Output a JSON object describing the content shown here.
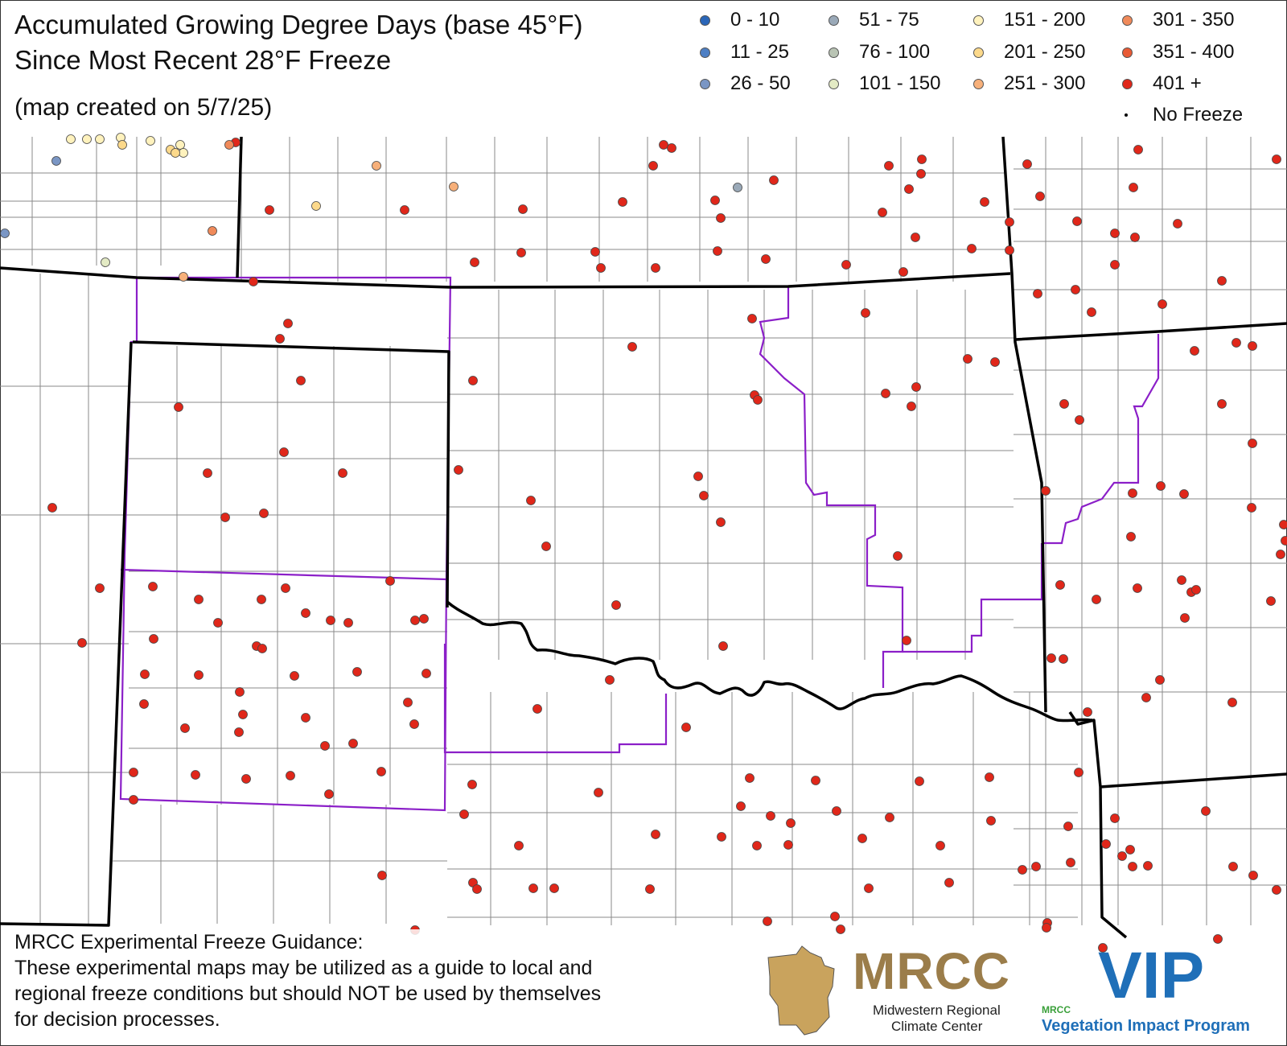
{
  "title": {
    "line1": "Accumulated Growing Degree Days (base 45°F)",
    "line2": "Since Most Recent 28°F Freeze",
    "created": "(map created on 5/7/25)"
  },
  "legend": [
    {
      "label": "0 - 10",
      "color": "#2a66b8"
    },
    {
      "label": "11 - 25",
      "color": "#4d7fc4"
    },
    {
      "label": "26 - 50",
      "color": "#7a96c4"
    },
    {
      "label": "51 - 75",
      "color": "#9aa9b8"
    },
    {
      "label": "76 - 100",
      "color": "#b9c4b4"
    },
    {
      "label": "101 - 150",
      "color": "#e3eac4"
    },
    {
      "label": "151 - 200",
      "color": "#fff2bd"
    },
    {
      "label": "201 - 250",
      "color": "#fcd98b"
    },
    {
      "label": "251 - 300",
      "color": "#f7b07a"
    },
    {
      "label": "301 - 350",
      "color": "#f08a5a"
    },
    {
      "label": "351 - 400",
      "color": "#e85a35"
    },
    {
      "label": "401 +",
      "color": "#e0271a"
    },
    {
      "label": "No Freeze",
      "color": "#000000"
    }
  ],
  "disclaimer": {
    "line1": "MRCC Experimental Freeze Guidance:",
    "line2": "These experimental maps may be utilized as a guide to local and",
    "line3": "regional freeze conditions but should NOT be used by themselves",
    "line4": "for decision processes."
  },
  "logos": {
    "mrcc": "MRCC",
    "mrcc_sub1": "Midwestern Regional",
    "mrcc_sub2": "Climate Center",
    "vip": "VIP",
    "vip_small": "MRCC",
    "vip_sub": "Vegetation Impact Program"
  },
  "colors": {
    "state_border": "#000000",
    "region_border": "#8b1fc8",
    "county_border": "#888888"
  },
  "stations": {
    "class_401_plus": "#e0271a",
    "other_classes_shown": [
      "151 - 200",
      "201 - 250",
      "251 - 300",
      "301 - 350",
      "351 - 400",
      "0 - 10",
      "26 - 50",
      "101 - 150"
    ]
  }
}
